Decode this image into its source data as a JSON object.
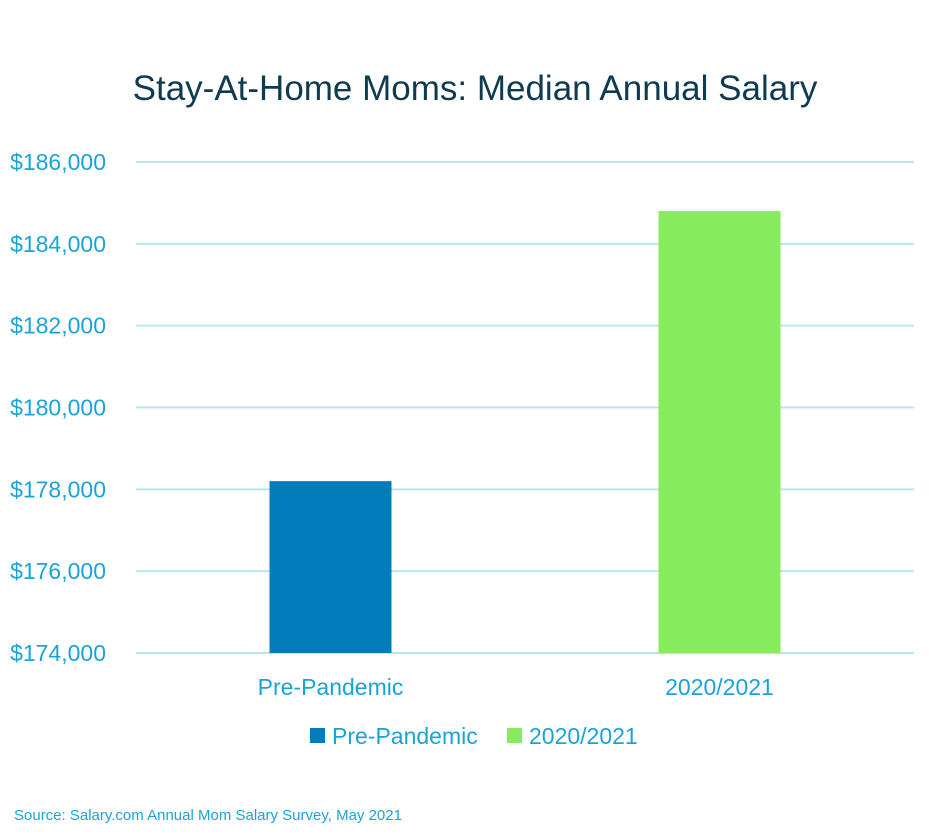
{
  "chart_data": {
    "type": "bar",
    "title": "Stay-At-Home Moms:  Median Annual Salary",
    "categories": [
      "Pre-Pandemic",
      "2020/2021"
    ],
    "values": [
      178200,
      184800
    ],
    "ylim": [
      174000,
      186000
    ],
    "yticks": [
      174000,
      176000,
      178000,
      180000,
      182000,
      184000,
      186000
    ],
    "ytick_labels": [
      "$174,000",
      "$176,000",
      "$178,000",
      "$180,000",
      "$182,000",
      "$184,000",
      "$186,000"
    ],
    "bar_colors": [
      "#027cbb",
      "#86eb5d"
    ],
    "grid": true,
    "legend": {
      "placement": "bottom-center",
      "entries": [
        "Pre-Pandemic",
        "2020/2021"
      ]
    },
    "source": "Source: Salary.com Annual Mom Salary Survey, May 2021"
  },
  "colors": {
    "title": "#0d3b4f",
    "label": "#1aa3d9",
    "grid": "#b8e6ef"
  }
}
